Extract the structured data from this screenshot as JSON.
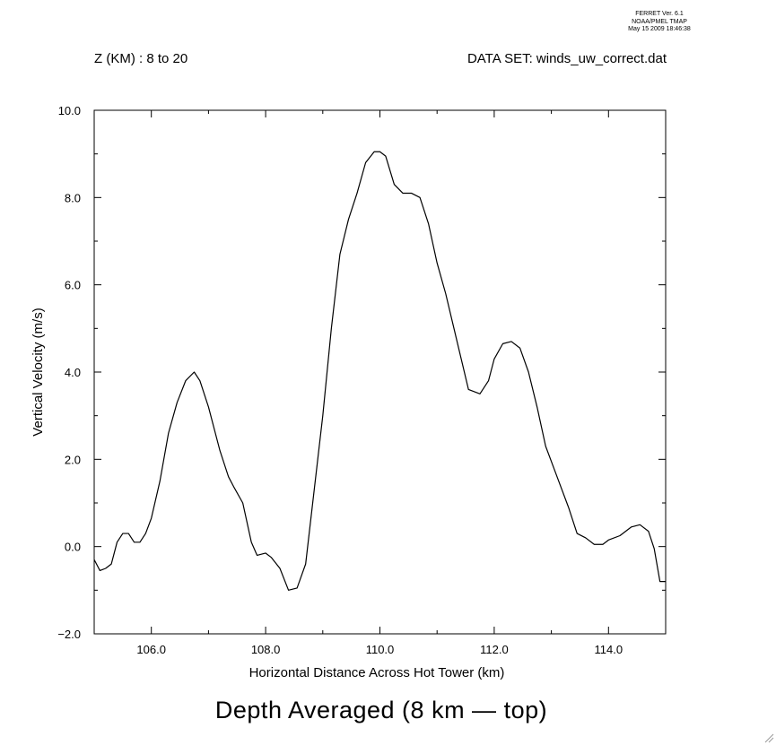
{
  "header": {
    "ferret_version": "FERRET Ver. 6.1",
    "ferret_org": "NOAA/PMEL TMAP",
    "timestamp": "May 15 2009 18:46:38",
    "z_range": "Z (KM) : 8 to 20",
    "dataset": "DATA SET: winds_uw_correct.dat"
  },
  "colors": {
    "line": "#000000",
    "axis": "#000000",
    "background": "#ffffff"
  },
  "chart_data": {
    "type": "line",
    "title": "Depth Averaged (8 km — top)",
    "xlabel": "Horizontal Distance Across Hot Tower (km)",
    "ylabel": "Vertical Velocity (m/s)",
    "xlim": [
      105.0,
      115.0
    ],
    "ylim": [
      -2.0,
      10.0
    ],
    "xticks": [
      106.0,
      108.0,
      110.0,
      112.0,
      114.0
    ],
    "xtick_labels": [
      "106.0",
      "108.0",
      "110.0",
      "112.0",
      "114.0"
    ],
    "yticks": [
      -2.0,
      0.0,
      2.0,
      4.0,
      6.0,
      8.0,
      10.0
    ],
    "ytick_labels": [
      "−2.0",
      "0.0",
      "2.0",
      "4.0",
      "6.0",
      "8.0",
      "10.0"
    ],
    "grid": false,
    "series": [
      {
        "x": [
          105.0,
          105.1,
          105.2,
          105.3,
          105.4,
          105.5,
          105.6,
          105.7,
          105.8,
          105.9,
          106.0,
          106.15,
          106.3,
          106.45,
          106.6,
          106.75,
          106.85,
          107.0,
          107.2,
          107.35,
          107.45,
          107.6,
          107.75,
          107.85,
          108.0,
          108.1,
          108.25,
          108.4,
          108.55,
          108.7,
          108.85,
          109.0,
          109.15,
          109.3,
          109.45,
          109.6,
          109.75,
          109.9,
          110.0,
          110.1,
          110.25,
          110.4,
          110.55,
          110.7,
          110.85,
          111.0,
          111.15,
          111.35,
          111.55,
          111.75,
          111.9,
          112.0,
          112.15,
          112.3,
          112.45,
          112.6,
          112.75,
          112.9,
          113.1,
          113.3,
          113.45,
          113.6,
          113.75,
          113.9,
          114.0,
          114.2,
          114.4,
          114.55,
          114.7,
          114.8,
          114.9,
          115.0
        ],
        "y": [
          -0.3,
          -0.55,
          -0.5,
          -0.4,
          0.1,
          0.3,
          0.3,
          0.1,
          0.1,
          0.3,
          0.65,
          1.5,
          2.6,
          3.3,
          3.8,
          4.0,
          3.8,
          3.2,
          2.2,
          1.6,
          1.35,
          1.0,
          0.1,
          -0.2,
          -0.15,
          -0.25,
          -0.5,
          -1.0,
          -0.95,
          -0.4,
          1.3,
          3.0,
          5.0,
          6.7,
          7.5,
          8.1,
          8.8,
          9.05,
          9.05,
          8.95,
          8.3,
          8.1,
          8.1,
          8.0,
          7.4,
          6.5,
          5.8,
          4.7,
          3.6,
          3.5,
          3.8,
          4.3,
          4.65,
          4.7,
          4.55,
          4.0,
          3.2,
          2.3,
          1.6,
          0.9,
          0.3,
          0.2,
          0.05,
          0.05,
          0.15,
          0.25,
          0.45,
          0.5,
          0.35,
          -0.05,
          -0.8,
          -0.8
        ]
      }
    ]
  }
}
